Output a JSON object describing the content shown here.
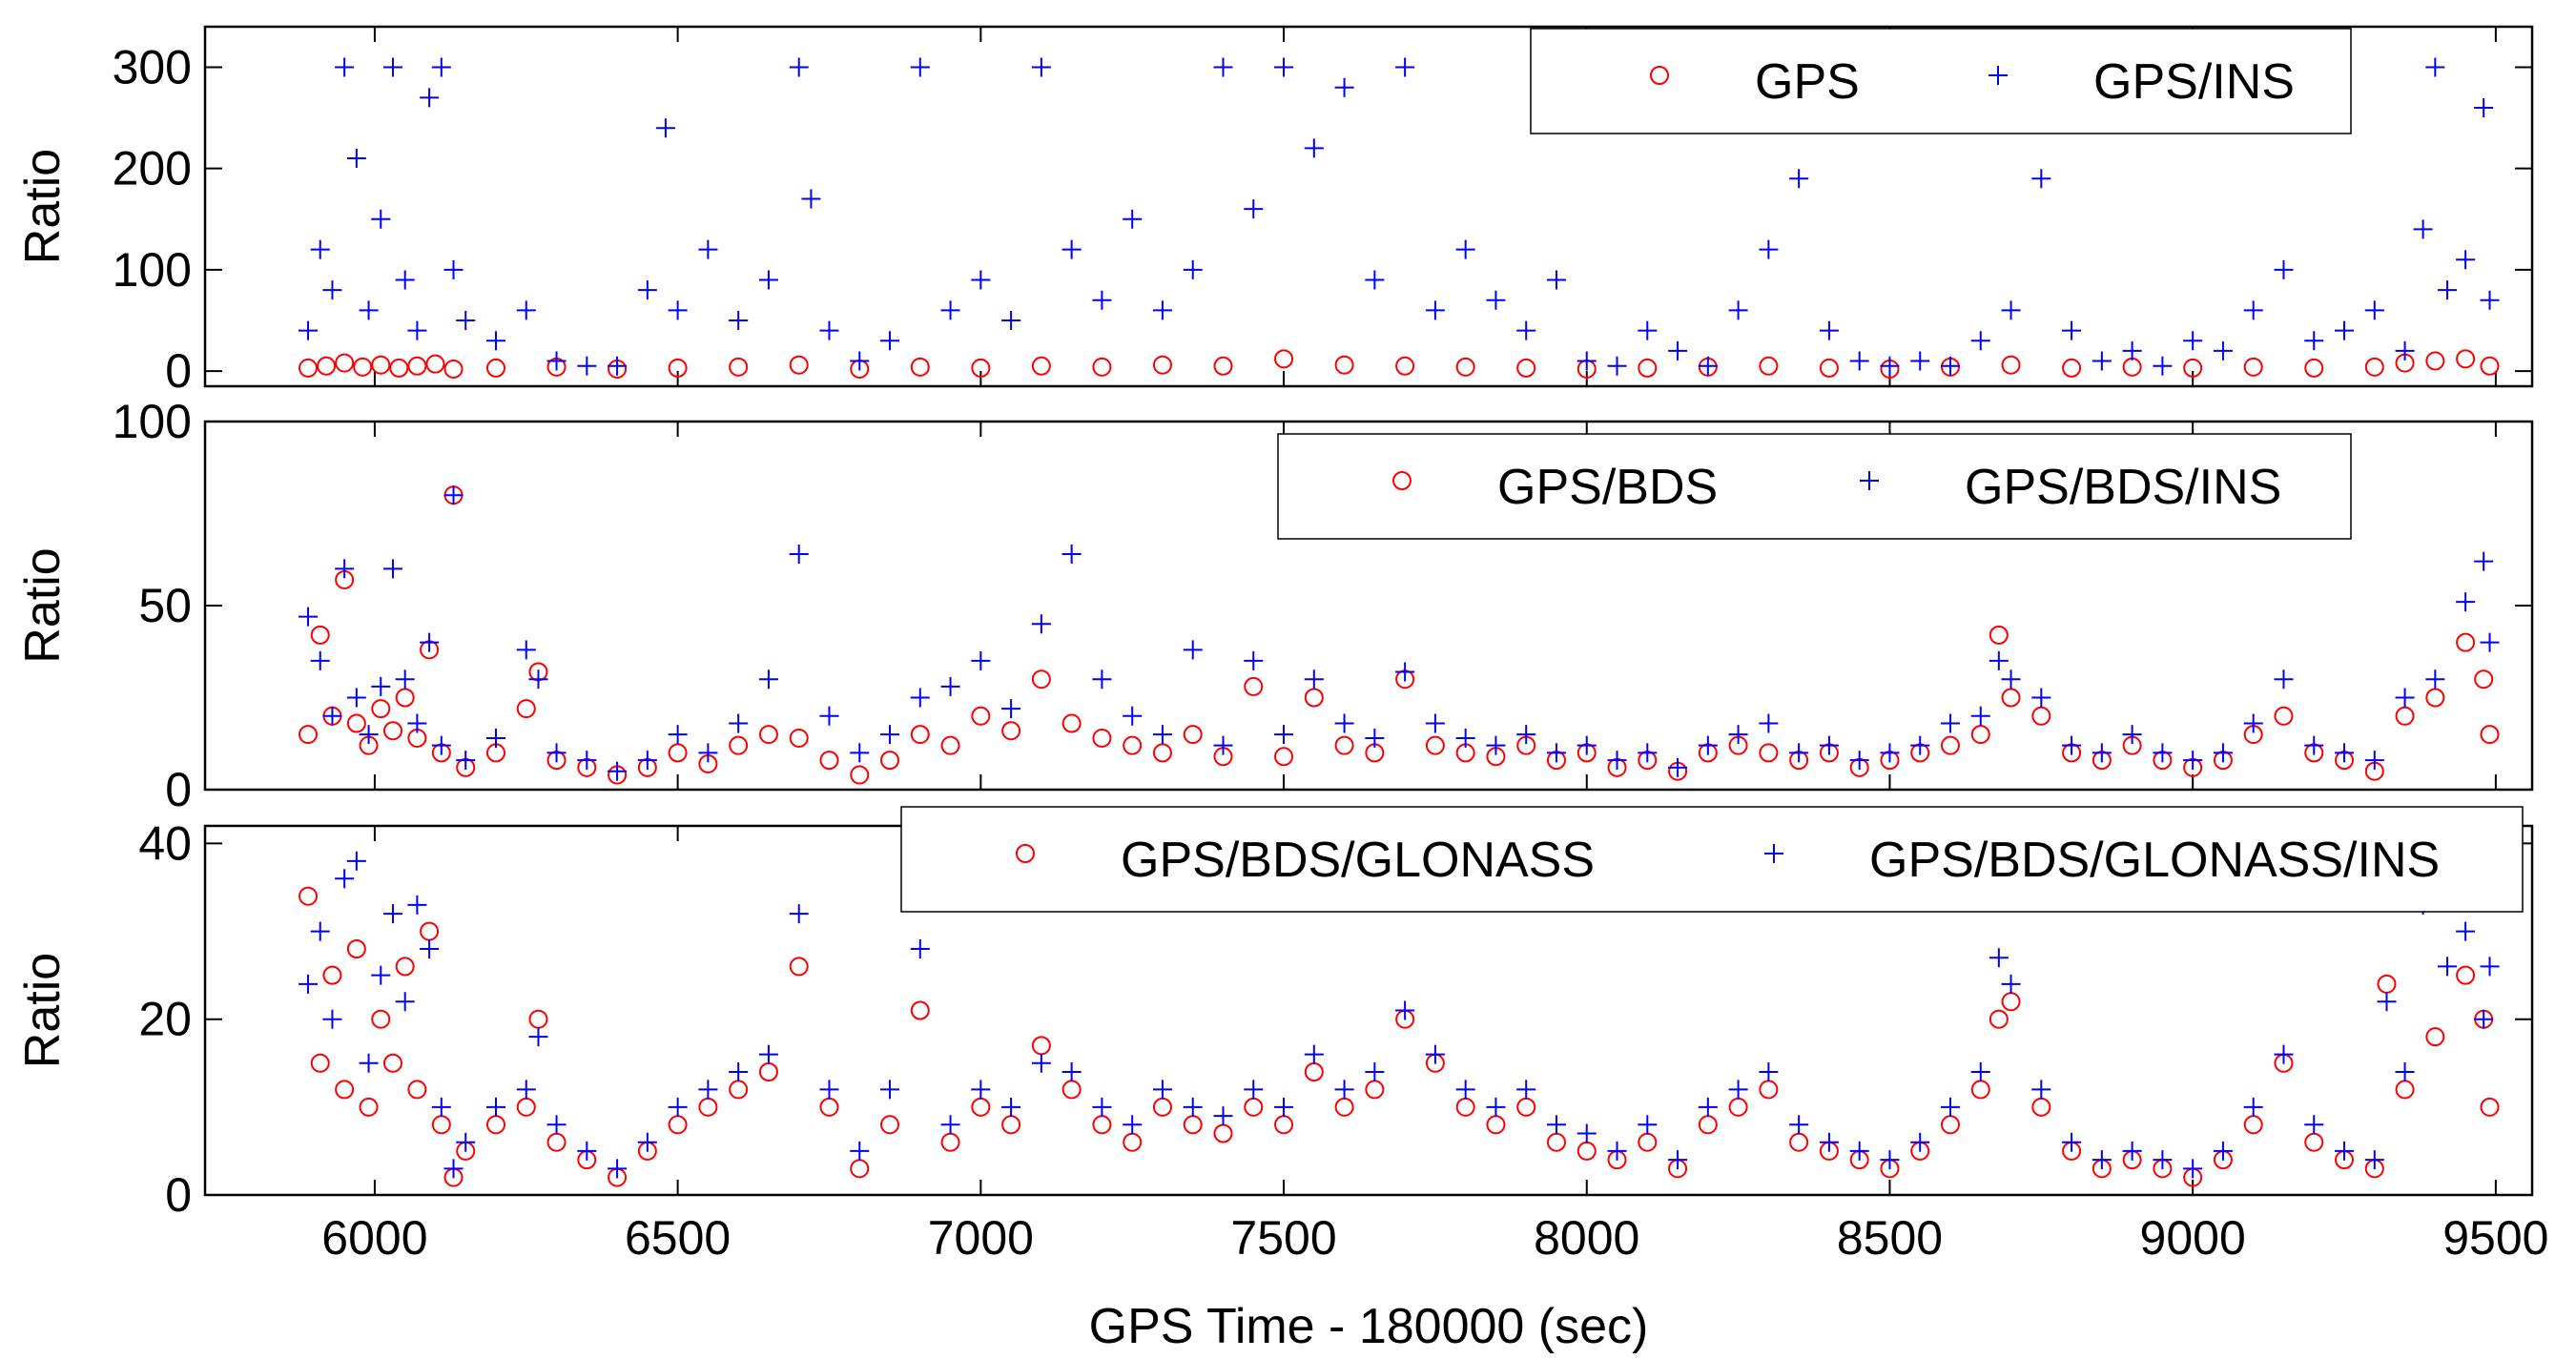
{
  "chart_data": [
    {
      "type": "scatter",
      "title": "",
      "ylabel": "Ratio",
      "xlim": [
        5720,
        9560
      ],
      "ylim": [
        -15,
        340
      ],
      "yticks": [
        0,
        100,
        200,
        300
      ],
      "grid": false,
      "legend_position": "top-right",
      "series": [
        {
          "name": "GPS",
          "marker": "circle",
          "color": "#ff0000",
          "x": [
            5890,
            5920,
            5950,
            5980,
            6010,
            6040,
            6070,
            6100,
            6130,
            6200,
            6300,
            6400,
            6500,
            6600,
            6700,
            6800,
            6900,
            7000,
            7100,
            7200,
            7300,
            7400,
            7500,
            7600,
            7700,
            7800,
            7900,
            8000,
            8100,
            8200,
            8300,
            8400,
            8500,
            8600,
            8700,
            8800,
            8900,
            9000,
            9100,
            9200,
            9300,
            9350,
            9400,
            9450,
            9490
          ],
          "y": [
            3,
            5,
            8,
            4,
            6,
            3,
            5,
            7,
            2,
            3,
            4,
            2,
            3,
            4,
            6,
            2,
            4,
            3,
            5,
            4,
            6,
            5,
            12,
            6,
            5,
            4,
            3,
            2,
            3,
            4,
            5,
            3,
            2,
            4,
            6,
            3,
            4,
            3,
            4,
            3,
            4,
            8,
            10,
            12,
            5
          ]
        },
        {
          "name": "GPS/INS",
          "marker": "plus",
          "color": "#0000ff",
          "x": [
            5890,
            5910,
            5930,
            5950,
            5970,
            5990,
            6010,
            6030,
            6050,
            6070,
            6090,
            6110,
            6130,
            6150,
            6200,
            6250,
            6300,
            6350,
            6400,
            6450,
            6480,
            6500,
            6550,
            6600,
            6650,
            6700,
            6720,
            6750,
            6800,
            6850,
            6900,
            6950,
            7000,
            7050,
            7100,
            7150,
            7200,
            7250,
            7300,
            7350,
            7400,
            7450,
            7500,
            7550,
            7600,
            7650,
            7700,
            7750,
            7800,
            7850,
            7900,
            7950,
            8000,
            8050,
            8100,
            8150,
            8200,
            8250,
            8300,
            8350,
            8400,
            8450,
            8500,
            8550,
            8600,
            8650,
            8700,
            8750,
            8800,
            8850,
            8900,
            8950,
            9000,
            9050,
            9100,
            9150,
            9200,
            9250,
            9300,
            9350,
            9380,
            9400,
            9420,
            9450,
            9480,
            9490
          ],
          "y": [
            40,
            120,
            80,
            300,
            210,
            60,
            150,
            300,
            90,
            40,
            270,
            300,
            100,
            50,
            30,
            60,
            10,
            5,
            5,
            80,
            240,
            60,
            120,
            50,
            90,
            300,
            170,
            40,
            10,
            30,
            300,
            60,
            90,
            50,
            300,
            120,
            70,
            150,
            60,
            100,
            300,
            160,
            300,
            220,
            280,
            90,
            300,
            60,
            120,
            70,
            40,
            90,
            10,
            5,
            40,
            20,
            5,
            60,
            120,
            190,
            40,
            10,
            5,
            10,
            5,
            30,
            60,
            190,
            40,
            10,
            20,
            5,
            30,
            20,
            60,
            100,
            30,
            40,
            60,
            20,
            140,
            300,
            80,
            110,
            260,
            70
          ]
        }
      ]
    },
    {
      "type": "scatter",
      "title": "",
      "ylabel": "Ratio",
      "xlim": [
        5720,
        9560
      ],
      "ylim": [
        0,
        100
      ],
      "yticks": [
        0,
        50,
        100
      ],
      "grid": false,
      "legend_position": "top-right",
      "series": [
        {
          "name": "GPS/BDS",
          "marker": "circle",
          "color": "#ff0000",
          "x": [
            5890,
            5910,
            5930,
            5950,
            5970,
            5990,
            6010,
            6030,
            6050,
            6070,
            6090,
            6110,
            6130,
            6150,
            6200,
            6250,
            6270,
            6300,
            6350,
            6400,
            6450,
            6500,
            6550,
            6600,
            6650,
            6700,
            6750,
            6800,
            6850,
            6900,
            6950,
            7000,
            7050,
            7100,
            7150,
            7200,
            7250,
            7300,
            7350,
            7400,
            7450,
            7500,
            7550,
            7600,
            7650,
            7700,
            7750,
            7800,
            7850,
            7900,
            7950,
            8000,
            8050,
            8100,
            8150,
            8200,
            8250,
            8300,
            8350,
            8400,
            8450,
            8500,
            8550,
            8600,
            8650,
            8680,
            8700,
            8750,
            8800,
            8850,
            8900,
            8950,
            9000,
            9050,
            9100,
            9150,
            9200,
            9250,
            9300,
            9350,
            9400,
            9450,
            9480,
            9490
          ],
          "y": [
            15,
            42,
            20,
            57,
            18,
            12,
            22,
            16,
            25,
            14,
            38,
            10,
            80,
            6,
            10,
            22,
            32,
            8,
            6,
            4,
            6,
            10,
            7,
            12,
            15,
            14,
            8,
            4,
            8,
            15,
            12,
            20,
            16,
            30,
            18,
            14,
            12,
            10,
            15,
            9,
            28,
            9,
            25,
            12,
            10,
            30,
            12,
            10,
            9,
            12,
            8,
            10,
            6,
            8,
            5,
            10,
            12,
            10,
            8,
            10,
            6,
            8,
            10,
            12,
            15,
            42,
            25,
            20,
            10,
            8,
            12,
            8,
            6,
            8,
            15,
            20,
            10,
            8,
            5,
            20,
            25,
            40,
            30,
            15
          ]
        },
        {
          "name": "GPS/BDS/INS",
          "marker": "plus",
          "color": "#0000ff",
          "x": [
            5890,
            5910,
            5930,
            5950,
            5970,
            5990,
            6010,
            6030,
            6050,
            6070,
            6090,
            6110,
            6130,
            6150,
            6200,
            6250,
            6270,
            6300,
            6350,
            6400,
            6450,
            6500,
            6550,
            6600,
            6650,
            6700,
            6750,
            6800,
            6850,
            6900,
            6950,
            7000,
            7050,
            7100,
            7150,
            7200,
            7250,
            7300,
            7350,
            7400,
            7450,
            7500,
            7550,
            7600,
            7650,
            7700,
            7750,
            7800,
            7850,
            7900,
            7950,
            8000,
            8050,
            8100,
            8150,
            8200,
            8250,
            8300,
            8350,
            8400,
            8450,
            8500,
            8550,
            8600,
            8650,
            8680,
            8700,
            8750,
            8800,
            8850,
            8900,
            8950,
            9000,
            9050,
            9100,
            9150,
            9200,
            9250,
            9300,
            9350,
            9400,
            9450,
            9480,
            9490
          ],
          "y": [
            47,
            35,
            20,
            60,
            25,
            15,
            28,
            60,
            30,
            18,
            40,
            12,
            80,
            8,
            14,
            38,
            30,
            10,
            8,
            5,
            8,
            15,
            10,
            18,
            30,
            64,
            20,
            10,
            15,
            25,
            28,
            35,
            22,
            45,
            64,
            30,
            20,
            15,
            38,
            12,
            35,
            15,
            30,
            18,
            14,
            32,
            18,
            14,
            12,
            15,
            10,
            12,
            8,
            10,
            6,
            12,
            15,
            18,
            10,
            12,
            8,
            10,
            12,
            18,
            20,
            35,
            30,
            25,
            12,
            10,
            15,
            10,
            8,
            10,
            18,
            30,
            12,
            10,
            8,
            25,
            30,
            51,
            62,
            40
          ]
        }
      ]
    },
    {
      "type": "scatter",
      "title": "",
      "xlabel": "GPS Time - 180000 (sec)",
      "ylabel": "Ratio",
      "xlim": [
        5720,
        9560
      ],
      "ylim": [
        0,
        42
      ],
      "xticks": [
        6000,
        6500,
        7000,
        7500,
        8000,
        8500,
        9000,
        9500
      ],
      "yticks": [
        0,
        20,
        40
      ],
      "grid": false,
      "legend_position": "top-right",
      "series": [
        {
          "name": "GPS/BDS/GLONASS",
          "marker": "circle",
          "color": "#ff0000",
          "x": [
            5890,
            5910,
            5930,
            5950,
            5970,
            5990,
            6010,
            6030,
            6050,
            6070,
            6090,
            6110,
            6130,
            6150,
            6200,
            6250,
            6270,
            6300,
            6350,
            6400,
            6450,
            6500,
            6550,
            6600,
            6650,
            6700,
            6750,
            6800,
            6850,
            6900,
            6950,
            7000,
            7050,
            7100,
            7150,
            7200,
            7250,
            7300,
            7350,
            7400,
            7450,
            7500,
            7550,
            7600,
            7650,
            7700,
            7750,
            7800,
            7850,
            7900,
            7950,
            8000,
            8050,
            8100,
            8150,
            8200,
            8250,
            8300,
            8350,
            8400,
            8450,
            8500,
            8550,
            8600,
            8650,
            8680,
            8700,
            8750,
            8800,
            8850,
            8900,
            8950,
            9000,
            9050,
            9100,
            9150,
            9200,
            9250,
            9300,
            9320,
            9350,
            9400,
            9450,
            9480,
            9490
          ],
          "y": [
            34,
            15,
            25,
            12,
            28,
            10,
            20,
            15,
            26,
            12,
            30,
            8,
            2,
            5,
            8,
            10,
            20,
            6,
            4,
            2,
            5,
            8,
            10,
            12,
            14,
            26,
            10,
            3,
            8,
            21,
            6,
            10,
            8,
            17,
            12,
            8,
            6,
            10,
            8,
            7,
            10,
            8,
            14,
            10,
            12,
            20,
            15,
            10,
            8,
            10,
            6,
            5,
            4,
            6,
            3,
            8,
            10,
            12,
            6,
            5,
            4,
            3,
            5,
            8,
            12,
            20,
            22,
            10,
            5,
            3,
            4,
            3,
            2,
            4,
            8,
            15,
            6,
            4,
            3,
            24,
            12,
            18,
            25,
            20,
            10
          ]
        },
        {
          "name": "GPS/BDS/GLONASS/INS",
          "marker": "plus",
          "color": "#0000ff",
          "x": [
            5890,
            5910,
            5930,
            5950,
            5970,
            5990,
            6010,
            6030,
            6050,
            6070,
            6090,
            6110,
            6130,
            6150,
            6200,
            6250,
            6270,
            6300,
            6350,
            6400,
            6450,
            6500,
            6550,
            6600,
            6650,
            6700,
            6750,
            6800,
            6850,
            6900,
            6950,
            7000,
            7050,
            7100,
            7150,
            7200,
            7250,
            7300,
            7350,
            7400,
            7450,
            7500,
            7550,
            7600,
            7650,
            7700,
            7750,
            7800,
            7850,
            7900,
            7950,
            8000,
            8050,
            8100,
            8150,
            8200,
            8250,
            8300,
            8350,
            8400,
            8450,
            8500,
            8550,
            8600,
            8650,
            8680,
            8700,
            8750,
            8800,
            8850,
            8900,
            8950,
            9000,
            9050,
            9100,
            9150,
            9200,
            9250,
            9300,
            9320,
            9350,
            9380,
            9420,
            9450,
            9480,
            9490
          ],
          "y": [
            24,
            30,
            20,
            36,
            38,
            15,
            25,
            32,
            22,
            33,
            28,
            10,
            3,
            6,
            10,
            12,
            18,
            8,
            5,
            3,
            6,
            10,
            12,
            14,
            16,
            32,
            12,
            5,
            12,
            28,
            8,
            12,
            10,
            15,
            14,
            10,
            8,
            12,
            10,
            9,
            12,
            10,
            16,
            12,
            14,
            21,
            16,
            12,
            10,
            12,
            8,
            7,
            5,
            8,
            4,
            10,
            12,
            14,
            8,
            6,
            5,
            4,
            6,
            10,
            14,
            27,
            24,
            12,
            6,
            4,
            5,
            4,
            3,
            5,
            10,
            16,
            8,
            5,
            4,
            22,
            14,
            33,
            26,
            30,
            20,
            26
          ]
        }
      ]
    }
  ]
}
